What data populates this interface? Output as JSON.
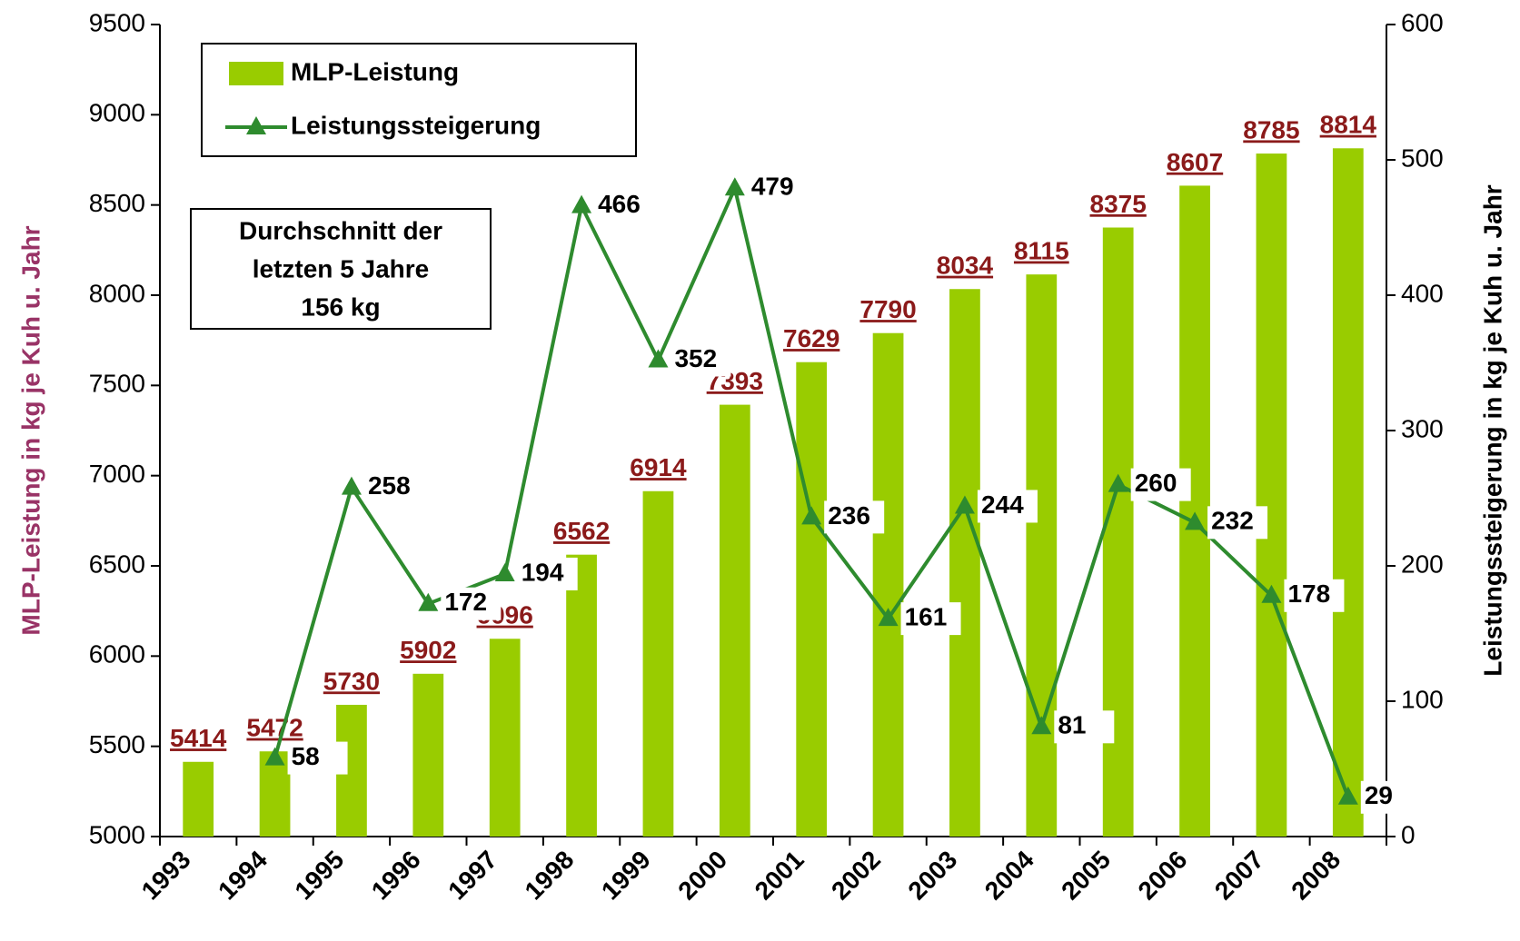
{
  "chart_data": {
    "type": "bar_line",
    "categories": [
      "1993",
      "1994",
      "1995",
      "1996",
      "1997",
      "1998",
      "1999",
      "2000",
      "2001",
      "2002",
      "2003",
      "2004",
      "2005",
      "2006",
      "2007",
      "2008"
    ],
    "series": [
      {
        "name": "MLP-Leistung",
        "type": "bar",
        "color": "#99cc00",
        "axis": "y",
        "values": [
          5414,
          5472,
          5730,
          5902,
          6096,
          6562,
          6914,
          7393,
          7629,
          7790,
          8034,
          8115,
          8375,
          8607,
          8785,
          8814
        ]
      },
      {
        "name": "Leistungssteigerung",
        "type": "line",
        "color": "#2e8b2e",
        "axis": "y2",
        "values": [
          null,
          58,
          258,
          172,
          194,
          466,
          352,
          479,
          236,
          161,
          244,
          81,
          260,
          232,
          178,
          29
        ]
      }
    ],
    "ylabel": "MLP-Leistung in kg je Kuh u. Jahr",
    "y2label": "Leistungssteigerung in kg je Kuh u. Jahr",
    "ylim": [
      5000,
      9500
    ],
    "yticks": [
      5000,
      5500,
      6000,
      6500,
      7000,
      7500,
      8000,
      8500,
      9000,
      9500
    ],
    "y2lim": [
      0,
      600
    ],
    "y2ticks": [
      0,
      100,
      200,
      300,
      400,
      500,
      600
    ],
    "annotation": [
      "Durchschnitt der",
      "letzten 5 Jahre",
      "156 kg"
    ],
    "legend": "upper left"
  }
}
